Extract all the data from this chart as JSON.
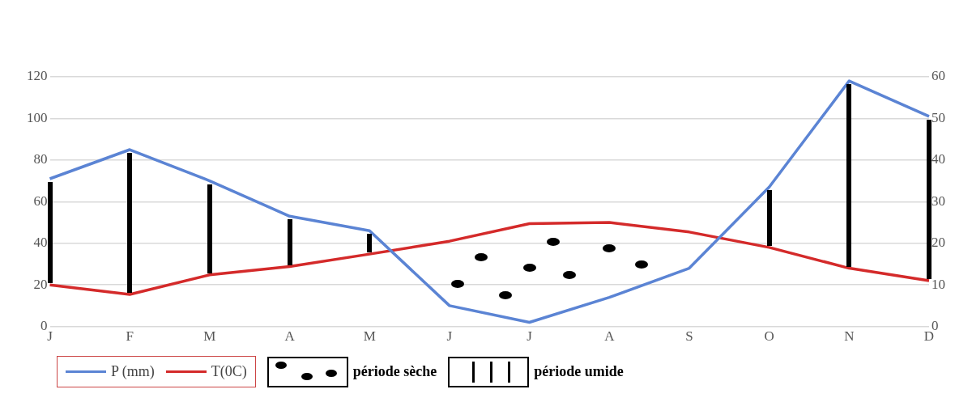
{
  "chart_data": {
    "type": "line",
    "categories": [
      "J",
      "F",
      "M",
      "A",
      "M",
      "J",
      "J",
      "A",
      "S",
      "O",
      "N",
      "D"
    ],
    "series": [
      {
        "name": "P (mm)",
        "color": "#5b84d4",
        "values": [
          71,
          85,
          70,
          53,
          46,
          10,
          2,
          14,
          28,
          67,
          118,
          101
        ]
      },
      {
        "name": "T(0C)",
        "color": "#d42a2a",
        "axis": "y2",
        "values": [
          10,
          7.7,
          12.4,
          14.4,
          17.4,
          20.5,
          24.7,
          25,
          22.7,
          19,
          14,
          11
        ]
      }
    ],
    "ylim": [
      0,
      120
    ],
    "yticks": [
      0,
      20,
      40,
      60,
      80,
      100,
      120
    ],
    "y2lim": [
      0,
      60
    ],
    "y2ticks": [
      0,
      10,
      20,
      30,
      40,
      50,
      60
    ],
    "grid": "y",
    "legend": "bottom",
    "marker": "none",
    "line_style": "solid",
    "annotations": [
      "période sèche",
      "période umide"
    ]
  }
}
